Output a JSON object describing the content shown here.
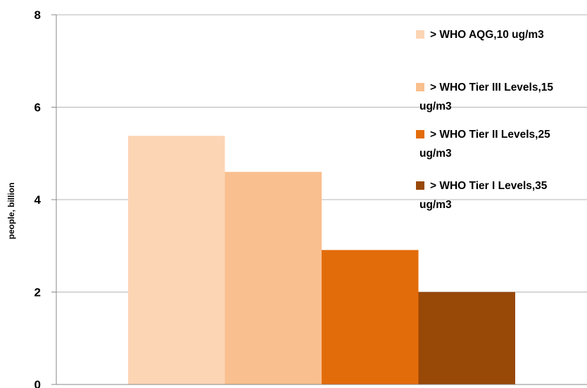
{
  "chart_data": {
    "type": "bar",
    "ylabel": "people, billion",
    "ylim": [
      0,
      8
    ],
    "yticks": [
      "0",
      "2",
      "4",
      "6",
      "8"
    ],
    "grid": true,
    "legend_position": "top-right",
    "series": [
      {
        "label_lines": [
          "> WHO AQG,10 ug/m3"
        ],
        "value": 5.38,
        "color": "#fcd5b5"
      },
      {
        "label_lines": [
          "> WHO Tier III Levels,15",
          "ug/m3"
        ],
        "value": 4.6,
        "color": "#f9bf8f"
      },
      {
        "label_lines": [
          "> WHO Tier II Levels,25",
          "ug/m3"
        ],
        "value": 2.91,
        "color": "#e36c0a"
      },
      {
        "label_lines": [
          "> WHO Tier I Levels,35",
          "ug/m3"
        ],
        "value": 2.0,
        "color": "#984807"
      }
    ]
  }
}
